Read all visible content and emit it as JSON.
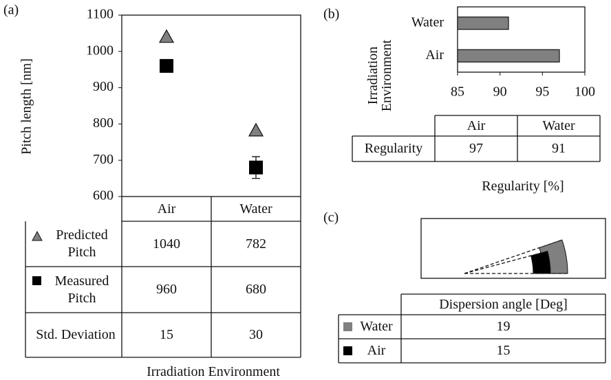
{
  "chart_data": [
    {
      "type": "scatter",
      "panel_label": "(a)",
      "y_label": "Pitch length [nm]",
      "x_label": "Irradiation Environment",
      "categories": [
        "Air",
        "Water"
      ],
      "series": [
        {
          "name": "Predicted Pitch",
          "color": "#808080",
          "marker": "triangle",
          "values": [
            1040,
            782
          ]
        },
        {
          "name": "Measured Pitch",
          "color": "#000000",
          "marker": "square",
          "values": [
            960,
            680
          ],
          "errors": [
            15,
            30
          ]
        }
      ],
      "error_label": "Std. Deviation",
      "ylim": [
        600,
        1100
      ],
      "yticks": [
        600,
        700,
        800,
        900,
        1000,
        1100
      ]
    },
    {
      "type": "bar",
      "orientation": "horizontal",
      "panel_label": "(b)",
      "y_label": "Irradiation Environment",
      "x_label": "Regularity [%]",
      "categories": [
        "Water",
        "Air"
      ],
      "values": [
        91,
        97
      ],
      "color": "#808080",
      "xlim": [
        85,
        100
      ],
      "xticks": [
        85,
        90,
        95,
        100
      ],
      "row_label": "Regularity"
    },
    {
      "type": "fan",
      "panel_label": "(c)",
      "title": "Dispersion angle [Deg]",
      "categories": [
        "Water",
        "Air"
      ],
      "values": [
        19,
        15
      ],
      "colors": [
        "#808080",
        "#000000"
      ]
    }
  ]
}
